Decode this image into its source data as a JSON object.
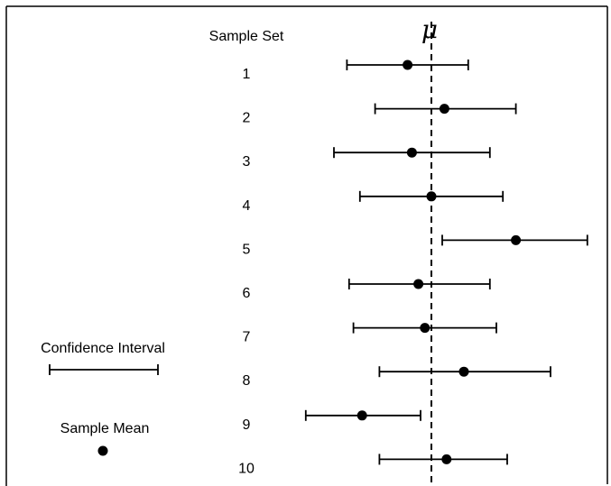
{
  "header": {
    "column_label": "Sample Set",
    "mu_symbol": "μ"
  },
  "chart_data": {
    "type": "scatter",
    "description_free": true,
    "reference_line": {
      "label": "μ",
      "style": "dashed",
      "value": 0
    },
    "rows": [
      {
        "label": "1",
        "mean": -0.55,
        "lower": -1.95,
        "upper": 0.85
      },
      {
        "label": "2",
        "mean": 0.3,
        "lower": -1.3,
        "upper": 1.95
      },
      {
        "label": "3",
        "mean": -0.45,
        "lower": -2.25,
        "upper": 1.35
      },
      {
        "label": "4",
        "mean": 0.0,
        "lower": -1.65,
        "upper": 1.65
      },
      {
        "label": "5",
        "mean": 1.95,
        "lower": 0.25,
        "upper": 3.6
      },
      {
        "label": "6",
        "mean": -0.3,
        "lower": -1.9,
        "upper": 1.35
      },
      {
        "label": "7",
        "mean": -0.15,
        "lower": -1.8,
        "upper": 1.5
      },
      {
        "label": "8",
        "mean": 0.75,
        "lower": -1.2,
        "upper": 2.75
      },
      {
        "label": "9",
        "mean": -1.6,
        "lower": -2.9,
        "upper": -0.25
      },
      {
        "label": "10",
        "mean": 0.35,
        "lower": -1.2,
        "upper": 1.75
      }
    ]
  },
  "legend": {
    "interval_label": "Confidence Interval",
    "mean_label": "Sample Mean"
  }
}
